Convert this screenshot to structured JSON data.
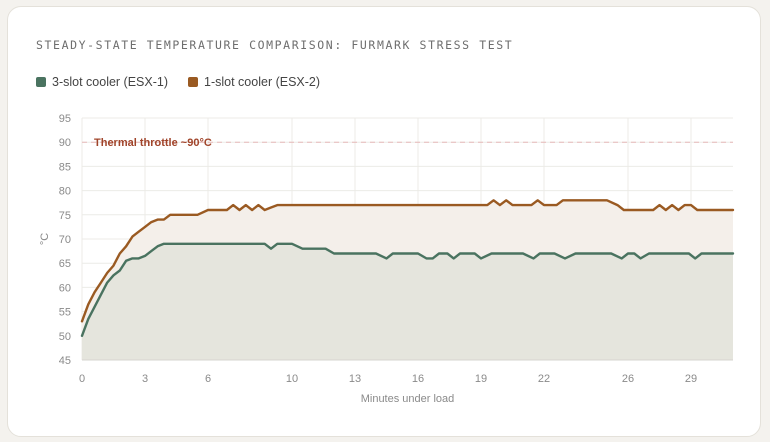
{
  "chart_data": {
    "type": "line",
    "title": "Steady-state temperature comparison: FurMark stress test",
    "xlabel": "Minutes under load",
    "ylabel": "°C",
    "xlim": [
      0,
      31
    ],
    "ylim": [
      45,
      95
    ],
    "x_ticks": [
      0,
      3,
      6,
      10,
      13,
      16,
      19,
      22,
      26,
      29
    ],
    "x_tick_labels": [
      "0",
      "3",
      "6",
      "10",
      "13",
      "16",
      "19",
      "22",
      "26",
      "29"
    ],
    "y_ticks": [
      45,
      50,
      55,
      60,
      65,
      70,
      75,
      80,
      85,
      90,
      95
    ],
    "y_tick_labels": [
      "45",
      "50",
      "55",
      "60",
      "65",
      "70",
      "75",
      "80",
      "85",
      "90",
      "95"
    ],
    "grid": true,
    "legend_position": "top-left",
    "annotation": {
      "text": "Thermal throttle ~90°C",
      "y": 90
    },
    "series": [
      {
        "name": "3-slot cooler (ESX-1)",
        "color": "#4a7360",
        "fill": "#e5e5dd",
        "x": [
          0,
          0.3,
          0.6,
          0.9,
          1.2,
          1.5,
          1.8,
          2.1,
          2.4,
          2.7,
          3.0,
          3.3,
          3.6,
          3.9,
          4.2,
          4.5,
          5.0,
          5.5,
          6.0,
          7.0,
          8.0,
          8.5,
          8.7,
          9.0,
          9.3,
          9.6,
          10.0,
          10.5,
          10.9,
          11.2,
          11.6,
          12.0,
          12.3,
          12.6,
          13.0,
          13.5,
          14.0,
          14.5,
          14.8,
          15.1,
          15.5,
          16.0,
          16.4,
          16.7,
          17.0,
          17.4,
          17.7,
          18.0,
          18.4,
          18.7,
          19.0,
          19.5,
          19.8,
          20.1,
          20.5,
          21.0,
          21.5,
          21.8,
          22.1,
          22.5,
          23.0,
          23.5,
          23.8,
          24.2,
          24.7,
          25.2,
          25.7,
          26.0,
          26.3,
          26.6,
          27.0,
          27.3,
          27.6,
          28.0,
          28.5,
          28.9,
          29.2,
          29.5,
          29.9,
          30.3,
          30.8,
          31.0
        ],
        "values": [
          50,
          53.5,
          56,
          58.5,
          61,
          62.5,
          63.5,
          65.5,
          66,
          66,
          66.5,
          67.5,
          68.5,
          69,
          69,
          69,
          69,
          69,
          69,
          69,
          69,
          69,
          69,
          68,
          69,
          69,
          69,
          68,
          68,
          68,
          68,
          67,
          67,
          67,
          67,
          67,
          67,
          66,
          67,
          67,
          67,
          67,
          66,
          66,
          67,
          67,
          66,
          67,
          67,
          67,
          66,
          67,
          67,
          67,
          67,
          67,
          66,
          67,
          67,
          67,
          66,
          67,
          67,
          67,
          67,
          67,
          66,
          67,
          67,
          66,
          67,
          67,
          67,
          67,
          67,
          67,
          66,
          67,
          67,
          67,
          67,
          67
        ]
      },
      {
        "name": "1-slot cooler (ESX-2)",
        "color": "#9a5a22",
        "fill": "#f4efea",
        "x": [
          0,
          0.3,
          0.6,
          0.9,
          1.2,
          1.5,
          1.8,
          2.1,
          2.4,
          2.7,
          3.0,
          3.3,
          3.6,
          3.9,
          4.2,
          4.5,
          5.0,
          5.5,
          6.0,
          6.4,
          6.9,
          7.2,
          7.5,
          7.8,
          8.1,
          8.4,
          8.7,
          9.0,
          9.3,
          9.7,
          10.0,
          11.0,
          13.0,
          15.0,
          17.0,
          18.0,
          19.0,
          19.3,
          19.6,
          19.9,
          20.2,
          20.5,
          20.8,
          21.1,
          21.4,
          21.7,
          22.0,
          22.3,
          22.6,
          22.9,
          23.2,
          23.5,
          24.0,
          24.5,
          25.0,
          25.5,
          25.8,
          26.1,
          26.4,
          26.8,
          27.2,
          27.5,
          27.8,
          28.1,
          28.4,
          28.7,
          29.0,
          29.3,
          29.6,
          30.0,
          30.5,
          31.0
        ],
        "values": [
          53,
          56.5,
          59,
          61,
          63,
          64.5,
          67,
          68.5,
          70.5,
          71.5,
          72.5,
          73.5,
          74,
          74,
          75,
          75,
          75,
          75,
          76,
          76,
          76,
          77,
          76,
          77,
          76,
          77,
          76,
          76.5,
          77,
          77,
          77,
          77,
          77,
          77,
          77,
          77,
          77,
          77,
          78,
          77,
          78,
          77,
          77,
          77,
          77,
          78,
          77,
          77,
          77,
          78,
          78,
          78,
          78,
          78,
          78,
          77,
          76,
          76,
          76,
          76,
          76,
          77,
          76,
          77,
          76,
          77,
          77,
          76,
          76,
          76,
          76,
          76
        ]
      }
    ]
  }
}
